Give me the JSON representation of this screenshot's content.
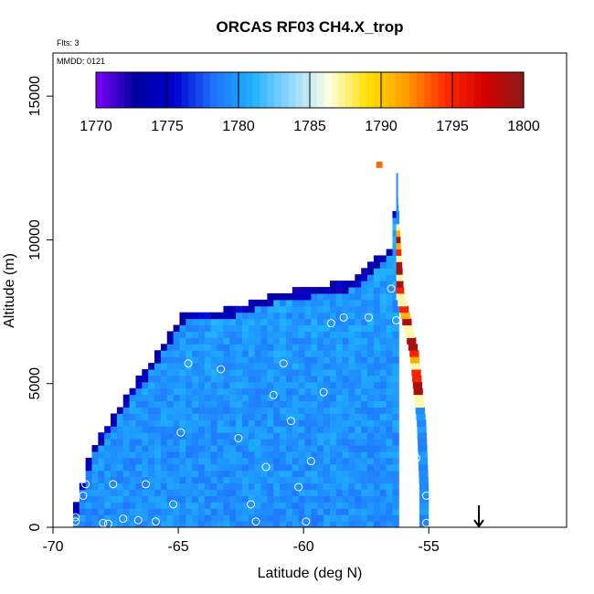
{
  "chart_data": {
    "type": "heatmap",
    "title": "ORCAS RF03 CH4.X_trop",
    "subtitle_flights": "Flts: 3",
    "subtitle_date": "MMDD: 0121",
    "xlabel": "Latitude (deg N)",
    "ylabel": "Altitude (m)",
    "xlim": [
      -70,
      -49.5
    ],
    "ylim": [
      0,
      16500
    ],
    "x_ticks": [
      -70,
      -65,
      -60,
      -55
    ],
    "x_tick_labels": [
      "-70",
      "-65",
      "-60",
      "-55"
    ],
    "y_ticks": [
      0,
      5000,
      10000,
      15000
    ],
    "y_tick_labels": [
      "0",
      "5000",
      "10000",
      "15000"
    ],
    "colorbar": {
      "min": 1770,
      "max": 1800,
      "ticks": [
        1770,
        1775,
        1780,
        1785,
        1790,
        1795,
        1800
      ],
      "tick_labels": [
        "1770",
        "1775",
        "1780",
        "1785",
        "1790",
        "1795",
        "1800"
      ],
      "colors": [
        "#7f00ff",
        "#00009f",
        "#0000cd",
        "#1f6fff",
        "#1fb0ff",
        "#8fd8ff",
        "#ffffe0",
        "#ffe000",
        "#ff9a00",
        "#ff2a00",
        "#d40000",
        "#8b1a1a"
      ]
    },
    "cross_section": {
      "cell_width_deg": 0.25,
      "cell_height_m": 220,
      "base_value": 1779.5,
      "top_edge_lat": [
        -69.2,
        -68.6,
        -64.9,
        -63.0,
        -61.4,
        -60.2,
        -58.2,
        -56.6,
        -56.3
      ],
      "top_edge_alt": [
        700,
        2600,
        7400,
        7500,
        8000,
        8200,
        8500,
        9700,
        12300
      ],
      "right_edge_lat": [
        -56.3,
        -56.0,
        -55.4,
        -55.1,
        -55.0,
        -55.0
      ],
      "right_edge_alt": [
        12300,
        8200,
        6000,
        3500,
        1200,
        0
      ],
      "high_values_near_tropopause": [
        1787,
        1791,
        1795,
        1799
      ]
    },
    "flight_track_points": [
      {
        "x": -69.1,
        "y": 200
      },
      {
        "x": -69.1,
        "y": 350
      },
      {
        "x": -68.8,
        "y": 1100
      },
      {
        "x": -68.7,
        "y": 1500
      },
      {
        "x": -68.0,
        "y": 150
      },
      {
        "x": -67.8,
        "y": 120
      },
      {
        "x": -67.6,
        "y": 1500
      },
      {
        "x": -67.2,
        "y": 300
      },
      {
        "x": -66.6,
        "y": 250
      },
      {
        "x": -66.3,
        "y": 1500
      },
      {
        "x": -65.9,
        "y": 200
      },
      {
        "x": -65.2,
        "y": 800
      },
      {
        "x": -64.9,
        "y": 3300
      },
      {
        "x": -64.6,
        "y": 5700
      },
      {
        "x": -63.3,
        "y": 5500
      },
      {
        "x": -62.6,
        "y": 3100
      },
      {
        "x": -62.1,
        "y": 800
      },
      {
        "x": -61.9,
        "y": 200
      },
      {
        "x": -61.5,
        "y": 2100
      },
      {
        "x": -61.2,
        "y": 4600
      },
      {
        "x": -60.8,
        "y": 5700
      },
      {
        "x": -60.5,
        "y": 3700
      },
      {
        "x": -60.2,
        "y": 1400
      },
      {
        "x": -59.9,
        "y": 200
      },
      {
        "x": -59.7,
        "y": 2300
      },
      {
        "x": -59.2,
        "y": 4700
      },
      {
        "x": -58.9,
        "y": 7100
      },
      {
        "x": -58.4,
        "y": 7300
      },
      {
        "x": -57.4,
        "y": 7300
      },
      {
        "x": -56.5,
        "y": 8300
      },
      {
        "x": -56.3,
        "y": 7200
      },
      {
        "x": -56.0,
        "y": 4700
      },
      {
        "x": -55.7,
        "y": 4300
      },
      {
        "x": -55.5,
        "y": 2400
      },
      {
        "x": -55.1,
        "y": 1100
      },
      {
        "x": -55.1,
        "y": 150
      }
    ],
    "extra_cells": [
      {
        "x": -57.1,
        "y": 12500,
        "value": 1793
      }
    ],
    "arrow": {
      "x": -53.0,
      "y_top": 700,
      "y_bottom": 0
    }
  }
}
